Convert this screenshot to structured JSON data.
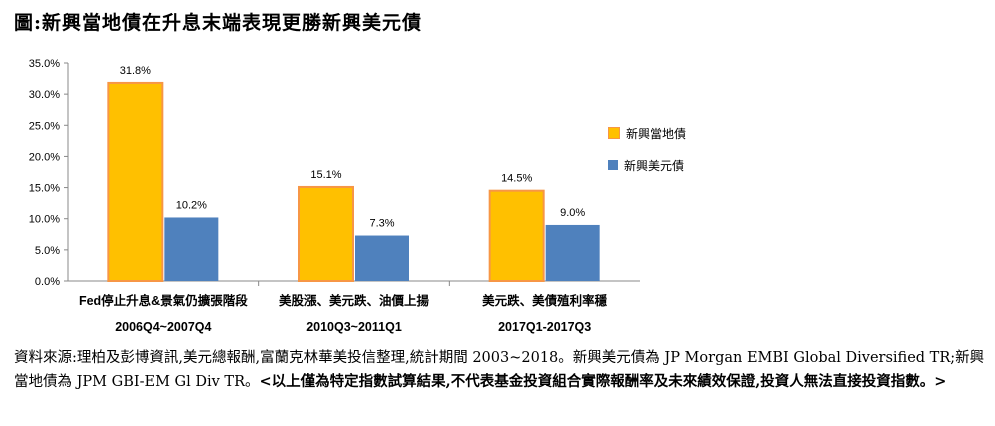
{
  "title": "圖:新興當地債在升息末端表現更勝新興美元債",
  "chart_data": {
    "type": "bar",
    "categories": [
      {
        "line1": "Fed停止升息&景氣仍擴張階段",
        "line2": "2006Q4~2007Q4"
      },
      {
        "line1": "美股漲、美元跌、油價上揚",
        "line2": "2010Q3~2011Q1"
      },
      {
        "line1": "美元跌、美債殖利率穩",
        "line2": "2017Q1-2017Q3"
      }
    ],
    "series": [
      {
        "name": "新興當地債",
        "values": [
          31.8,
          15.1,
          14.5
        ],
        "labels": [
          "31.8%",
          "15.1%",
          "14.5%"
        ],
        "color": "#FFC000",
        "border": "#F79646"
      },
      {
        "name": "新興美元債",
        "values": [
          10.2,
          7.3,
          9.0
        ],
        "labels": [
          "10.2%",
          "7.3%",
          "9.0%"
        ],
        "color": "#4F81BD",
        "border": "#4F81BD"
      }
    ],
    "ylim": [
      0,
      35
    ],
    "yticks": [
      "0.0%",
      "5.0%",
      "10.0%",
      "15.0%",
      "20.0%",
      "25.0%",
      "30.0%",
      "35.0%"
    ],
    "grid": false,
    "legend": "right"
  },
  "source": {
    "text": "資料來源:理柏及彭博資訊,美元總報酬,富蘭克林華美投信整理,統計期間 2003~2018。新興美元債為 JP Morgan EMBI Global Diversified TR;新興當地債為 JPM GBI-EM Gl Div TR。",
    "note": "<以上僅為特定指數試算結果,不代表基金投資組合實際報酬率及未來績效保證,投資人無法直接投資指數。>"
  }
}
